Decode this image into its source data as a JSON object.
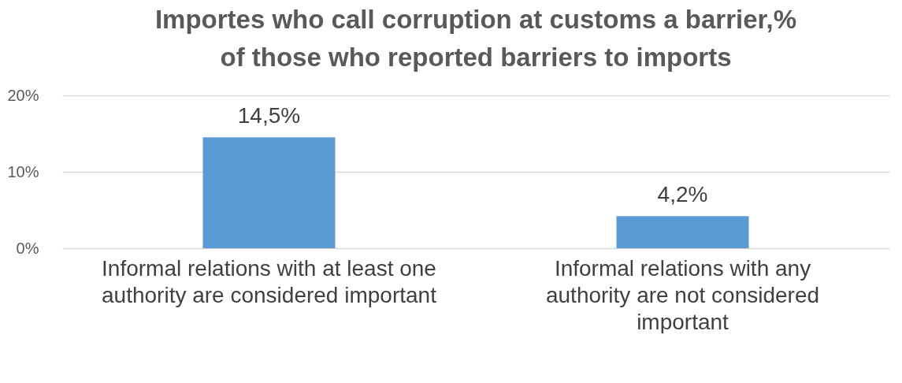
{
  "chart_data": {
    "type": "bar",
    "title": "Importes who call corruption at customs a barrier,% of those who reported barriers to imports",
    "categories": [
      "Informal relations with at least one authority are considered important",
      "Informal relations with any authority are not considered important"
    ],
    "values": [
      14.5,
      4.2
    ],
    "color": "#5b9bd5",
    "value_labels": [
      "14,5%",
      "4,2%"
    ],
    "ylim": [
      0,
      20
    ],
    "yticks": [
      {
        "value": 0,
        "label": "0%"
      },
      {
        "value": 10,
        "label": "10%"
      },
      {
        "value": 20,
        "label": "20%"
      }
    ],
    "grid": "y"
  }
}
